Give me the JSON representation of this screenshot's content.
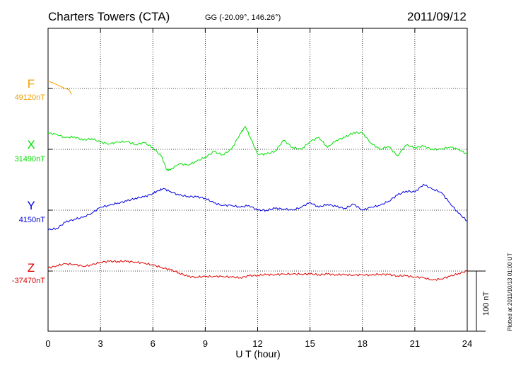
{
  "header": {
    "station": "Charters Towers (CTA)",
    "coords": "GG (-20.09°, 146.26°)",
    "date": "2011/09/12"
  },
  "plotted_note": "Plotted at 2011/10/13 01:00 UT",
  "scale_label": "100 nT",
  "chart_data": {
    "type": "line",
    "title": "Charters Towers (CTA)",
    "xlabel": "U T (hour)",
    "ylabel": "",
    "xlim": [
      0,
      24
    ],
    "x_ticks": [
      0,
      3,
      6,
      9,
      12,
      15,
      18,
      21,
      24
    ],
    "x_tick_labels": [
      "0",
      "3",
      "6",
      "9",
      "12",
      "15",
      "18",
      "21",
      "24"
    ],
    "grid": true,
    "scale_bar_nT": 100,
    "series": [
      {
        "name": "F",
        "baseline_label": "49120nT",
        "baseline_nT": 49120,
        "color": "#f0a000",
        "x": [
          0,
          0.3,
          0.6,
          0.9,
          1.2,
          1.35
        ],
        "y": [
          12,
          9,
          5,
          1,
          -2,
          -10
        ]
      },
      {
        "name": "X",
        "baseline_label": "31490nT",
        "baseline_nT": 31490,
        "color": "#00e000",
        "x": [
          0,
          0.5,
          1,
          1.5,
          2,
          2.5,
          3,
          3.5,
          4,
          4.5,
          5,
          5.5,
          6,
          6.5,
          6.8,
          7,
          7.5,
          8,
          8.5,
          9,
          9.5,
          10,
          10.5,
          11,
          11.3,
          11.6,
          12,
          12.5,
          13,
          13.5,
          14,
          14.5,
          15,
          15.5,
          16,
          16.5,
          17,
          17.5,
          18,
          18.5,
          19,
          19.5,
          20,
          20.5,
          21,
          21.5,
          22,
          22.5,
          23,
          23.5,
          24
        ],
        "y": [
          27,
          25,
          19,
          21,
          15,
          18,
          12,
          9,
          12,
          13,
          8,
          11,
          3,
          -12,
          -34,
          -34,
          -24,
          -26,
          -20,
          -13,
          -4,
          -9,
          0,
          26,
          38,
          18,
          -8,
          -8,
          -3,
          15,
          3,
          0,
          13,
          20,
          3,
          15,
          20,
          28,
          27,
          10,
          0,
          5,
          -11,
          7,
          3,
          5,
          0,
          0,
          4,
          0,
          -8
        ]
      },
      {
        "name": "Y",
        "baseline_label": "4150nT",
        "baseline_nT": 4150,
        "color": "#0000e0",
        "x": [
          0,
          0.5,
          1,
          1.5,
          2,
          2.5,
          3,
          3.5,
          4,
          4.5,
          5,
          5.5,
          6,
          6.3,
          6.6,
          7,
          7.5,
          8,
          8.5,
          9,
          9.5,
          10,
          10.5,
          11,
          11.5,
          12,
          12.5,
          13,
          13.5,
          14,
          14.5,
          15,
          15.5,
          16,
          16.5,
          17,
          17.5,
          18,
          18.5,
          19,
          19.5,
          20,
          20.5,
          21,
          21.5,
          22,
          22.5,
          23,
          23.5,
          24
        ],
        "y": [
          -33,
          -30,
          -20,
          -15,
          -12,
          -5,
          5,
          8,
          12,
          15,
          20,
          22,
          28,
          32,
          36,
          31,
          25,
          23,
          22,
          20,
          12,
          8,
          8,
          5,
          8,
          0,
          0,
          3,
          2,
          0,
          5,
          13,
          5,
          10,
          6,
          3,
          10,
          0,
          5,
          8,
          15,
          25,
          32,
          30,
          43,
          35,
          30,
          12,
          -5,
          -18
        ]
      },
      {
        "name": "Z",
        "baseline_label": "-37470nT",
        "baseline_nT": -37470,
        "color": "#e00000",
        "x": [
          0,
          0.5,
          1,
          1.5,
          2,
          2.5,
          3,
          3.5,
          4,
          4.5,
          5,
          5.5,
          6,
          6.5,
          7,
          7.5,
          8,
          8.5,
          9,
          9.5,
          10,
          10.5,
          11,
          11.5,
          12,
          12.5,
          13,
          13.5,
          14,
          14.5,
          15,
          15.5,
          16,
          16.5,
          17,
          17.5,
          18,
          18.5,
          19,
          19.5,
          20,
          20.5,
          21,
          21.5,
          22,
          22.5,
          23,
          23.5,
          24
        ],
        "y": [
          5,
          9,
          12,
          11,
          8,
          10,
          15,
          16,
          16,
          16,
          15,
          13,
          10,
          6,
          2,
          -3,
          -9,
          -10,
          -9,
          -9,
          -9,
          -10,
          -11,
          -8,
          -7,
          -6,
          -6,
          -5,
          -5,
          -5,
          -5,
          -6,
          -5,
          -6,
          -6,
          -7,
          -6,
          -7,
          -5,
          -6,
          -8,
          -8,
          -10,
          -11,
          -15,
          -13,
          -9,
          -4,
          0
        ]
      }
    ]
  }
}
